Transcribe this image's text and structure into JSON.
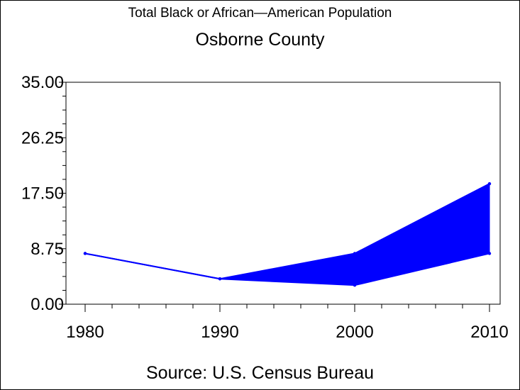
{
  "chart_data": {
    "type": "area",
    "title": "Total Black or African—American Population",
    "subtitle": "Osborne County",
    "source": "Source: U.S. Census Bureau",
    "x": [
      1980,
      1990,
      2000,
      2010
    ],
    "x_tick_labels": [
      "1980",
      "1990",
      "2000",
      "2010"
    ],
    "y_tick_labels": [
      "0.00",
      "8.75",
      "17.50",
      "26.25",
      "35.00"
    ],
    "ylim": [
      0,
      35
    ],
    "y_ticks": [
      0,
      8.75,
      17.5,
      26.25,
      35
    ],
    "series": [
      {
        "values": [
          8,
          4,
          8,
          19
        ]
      },
      {
        "values": [
          8,
          4,
          3,
          8
        ]
      }
    ],
    "fill_between_series": true,
    "color": "#0000ff",
    "grid": false
  }
}
